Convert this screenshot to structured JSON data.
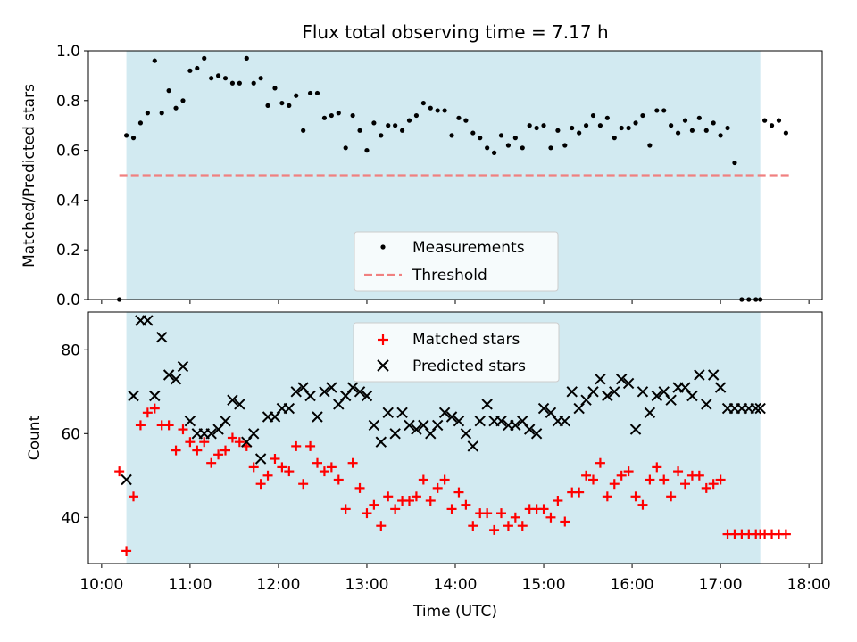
{
  "title": "Flux total observing time = 7.17 h",
  "colors": {
    "shade": "#add8e6",
    "measure": "#000000",
    "threshold": "#f08080",
    "matched": "#ff0000",
    "predicted": "#000000"
  },
  "chart_data": [
    {
      "type": "scatter",
      "ylabel": "Matched/Predicted stars",
      "xlim": [
        9.85,
        18.15
      ],
      "ylim": [
        0,
        1.0
      ],
      "yticks": [
        0.0,
        0.2,
        0.4,
        0.6,
        0.8,
        1.0
      ],
      "ytick_labels": [
        "0.0",
        "0.2",
        "0.4",
        "0.6",
        "0.8",
        "1.0"
      ],
      "shaded_span": [
        10.28,
        17.45
      ],
      "threshold": {
        "name": "Threshold",
        "value": 0.5,
        "x": [
          10.2,
          17.8
        ]
      },
      "legend": {
        "position": "lower center",
        "labels": [
          "Measurements",
          "Threshold"
        ]
      },
      "series": [
        {
          "name": "Measurements",
          "x": [
            10.2,
            10.28,
            10.36,
            10.44,
            10.52,
            10.6,
            10.68,
            10.76,
            10.84,
            10.92,
            11.0,
            11.08,
            11.16,
            11.24,
            11.32,
            11.4,
            11.48,
            11.56,
            11.64,
            11.72,
            11.8,
            11.88,
            11.96,
            12.04,
            12.12,
            12.2,
            12.28,
            12.36,
            12.44,
            12.52,
            12.6,
            12.68,
            12.76,
            12.84,
            12.92,
            13.0,
            13.08,
            13.16,
            13.24,
            13.32,
            13.4,
            13.48,
            13.56,
            13.64,
            13.72,
            13.8,
            13.88,
            13.96,
            14.04,
            14.12,
            14.2,
            14.28,
            14.36,
            14.44,
            14.52,
            14.6,
            14.68,
            14.76,
            14.84,
            14.92,
            15.0,
            15.08,
            15.16,
            15.24,
            15.32,
            15.4,
            15.48,
            15.56,
            15.64,
            15.72,
            15.8,
            15.88,
            15.96,
            16.04,
            16.12,
            16.2,
            16.28,
            16.36,
            16.44,
            16.52,
            16.6,
            16.68,
            16.76,
            16.84,
            16.92,
            17.0,
            17.08,
            17.16,
            17.24,
            17.32,
            17.4,
            17.45,
            17.5,
            17.58,
            17.66,
            17.74
          ],
          "y": [
            0.0,
            0.66,
            0.65,
            0.71,
            0.75,
            0.96,
            0.75,
            0.84,
            0.77,
            0.8,
            0.92,
            0.93,
            0.97,
            0.89,
            0.9,
            0.89,
            0.87,
            0.87,
            0.97,
            0.87,
            0.89,
            0.78,
            0.85,
            0.79,
            0.78,
            0.82,
            0.68,
            0.83,
            0.83,
            0.73,
            0.74,
            0.75,
            0.61,
            0.74,
            0.68,
            0.6,
            0.71,
            0.66,
            0.7,
            0.7,
            0.68,
            0.72,
            0.74,
            0.79,
            0.77,
            0.76,
            0.76,
            0.66,
            0.73,
            0.72,
            0.67,
            0.65,
            0.61,
            0.59,
            0.66,
            0.62,
            0.65,
            0.61,
            0.7,
            0.69,
            0.7,
            0.61,
            0.68,
            0.62,
            0.69,
            0.67,
            0.7,
            0.74,
            0.7,
            0.73,
            0.65,
            0.69,
            0.69,
            0.71,
            0.74,
            0.62,
            0.76,
            0.76,
            0.7,
            0.67,
            0.72,
            0.68,
            0.73,
            0.68,
            0.71,
            0.66,
            0.69,
            0.55,
            0.0,
            0.0,
            0.0,
            0.0,
            0.72,
            0.7,
            0.72,
            0.67
          ]
        }
      ]
    },
    {
      "type": "scatter",
      "ylabel": "Count",
      "xlabel": "Time (UTC)",
      "xlim": [
        9.85,
        18.15
      ],
      "ylim": [
        29,
        89
      ],
      "yticks": [
        40,
        60,
        80
      ],
      "ytick_labels": [
        "40",
        "60",
        "80"
      ],
      "xticks": [
        10,
        11,
        12,
        13,
        14,
        15,
        16,
        17,
        18
      ],
      "xtick_labels": [
        "10:00",
        "11:00",
        "12:00",
        "13:00",
        "14:00",
        "15:00",
        "16:00",
        "17:00",
        "18:00"
      ],
      "shaded_span": [
        10.28,
        17.45
      ],
      "legend": {
        "position": "upper center",
        "labels": [
          "Matched stars",
          "Predicted stars"
        ]
      },
      "series": [
        {
          "name": "Matched stars",
          "marker": "plus",
          "x": [
            10.2,
            10.28,
            10.36,
            10.44,
            10.52,
            10.6,
            10.68,
            10.76,
            10.84,
            10.92,
            11.0,
            11.08,
            11.16,
            11.24,
            11.32,
            11.4,
            11.48,
            11.56,
            11.64,
            11.72,
            11.8,
            11.88,
            11.96,
            12.04,
            12.12,
            12.2,
            12.28,
            12.36,
            12.44,
            12.52,
            12.6,
            12.68,
            12.76,
            12.84,
            12.92,
            13.0,
            13.08,
            13.16,
            13.24,
            13.32,
            13.4,
            13.48,
            13.56,
            13.64,
            13.72,
            13.8,
            13.88,
            13.96,
            14.04,
            14.12,
            14.2,
            14.28,
            14.36,
            14.44,
            14.52,
            14.6,
            14.68,
            14.76,
            14.84,
            14.92,
            15.0,
            15.08,
            15.16,
            15.24,
            15.32,
            15.4,
            15.48,
            15.56,
            15.64,
            15.72,
            15.8,
            15.88,
            15.96,
            16.04,
            16.12,
            16.2,
            16.28,
            16.36,
            16.44,
            16.52,
            16.6,
            16.68,
            16.76,
            16.84,
            16.92,
            17.0,
            17.08,
            17.16,
            17.24,
            17.32,
            17.4,
            17.45,
            17.5,
            17.58,
            17.66,
            17.74
          ],
          "y": [
            51,
            32,
            45,
            62,
            65,
            66,
            62,
            62,
            56,
            61,
            58,
            56,
            58,
            53,
            55,
            56,
            59,
            58,
            57,
            52,
            48,
            50,
            54,
            52,
            51,
            57,
            48,
            57,
            53,
            51,
            52,
            49,
            42,
            53,
            47,
            41,
            43,
            38,
            45,
            42,
            44,
            44,
            45,
            49,
            44,
            47,
            49,
            42,
            46,
            43,
            38,
            41,
            41,
            37,
            41,
            38,
            40,
            38,
            42,
            42,
            42,
            40,
            44,
            39,
            46,
            46,
            50,
            49,
            53,
            45,
            48,
            50,
            51,
            45,
            43,
            49,
            52,
            49,
            45,
            51,
            48,
            50,
            50,
            47,
            48,
            49,
            36,
            36,
            36,
            36,
            36,
            36,
            36,
            36,
            36,
            36
          ]
        },
        {
          "name": "Predicted stars",
          "marker": "x",
          "x": [
            10.28,
            10.36,
            10.44,
            10.52,
            10.6,
            10.68,
            10.76,
            10.84,
            10.92,
            11.0,
            11.08,
            11.16,
            11.24,
            11.32,
            11.4,
            11.48,
            11.56,
            11.64,
            11.72,
            11.8,
            11.88,
            11.96,
            12.04,
            12.12,
            12.2,
            12.28,
            12.36,
            12.44,
            12.52,
            12.6,
            12.68,
            12.76,
            12.84,
            12.92,
            13.0,
            13.08,
            13.16,
            13.24,
            13.32,
            13.4,
            13.48,
            13.56,
            13.64,
            13.72,
            13.8,
            13.88,
            13.96,
            14.04,
            14.12,
            14.2,
            14.28,
            14.36,
            14.44,
            14.52,
            14.6,
            14.68,
            14.76,
            14.84,
            14.92,
            15.0,
            15.08,
            15.16,
            15.24,
            15.32,
            15.4,
            15.48,
            15.56,
            15.64,
            15.72,
            15.8,
            15.88,
            15.96,
            16.04,
            16.12,
            16.2,
            16.28,
            16.36,
            16.44,
            16.52,
            16.6,
            16.68,
            16.76,
            16.84,
            16.92,
            17.0,
            17.08,
            17.16,
            17.24,
            17.32,
            17.4,
            17.45
          ],
          "y": [
            49,
            69,
            87,
            87,
            69,
            83,
            74,
            73,
            76,
            63,
            60,
            60,
            60,
            61,
            63,
            68,
            67,
            58,
            60,
            54,
            64,
            64,
            66,
            66,
            70,
            71,
            69,
            64,
            70,
            71,
            67,
            69,
            71,
            70,
            69,
            62,
            58,
            65,
            60,
            65,
            62,
            61,
            62,
            60,
            62,
            65,
            64,
            63,
            60,
            57,
            63,
            67,
            63,
            63,
            62,
            62,
            63,
            61,
            60,
            66,
            65,
            63,
            63,
            70,
            66,
            68,
            70,
            73,
            69,
            70,
            73,
            72,
            61,
            70,
            65,
            69,
            70,
            68,
            71,
            71,
            69,
            74,
            67,
            74,
            71,
            66,
            66,
            66,
            66,
            66,
            66
          ]
        }
      ]
    }
  ]
}
